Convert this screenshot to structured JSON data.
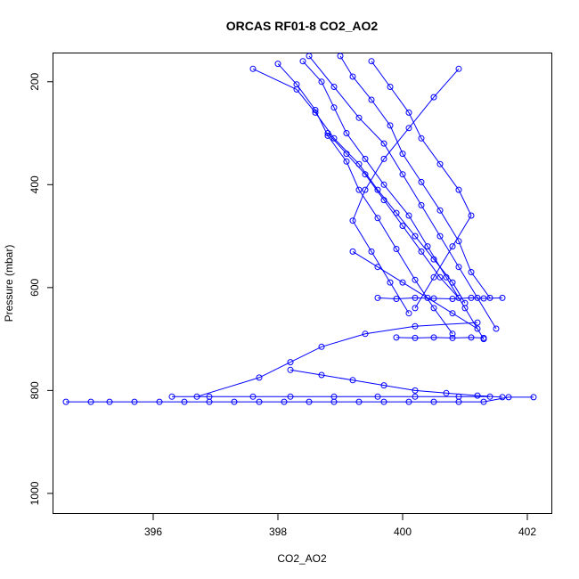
{
  "chart_data": {
    "type": "scatter",
    "title": "ORCAS RF01-8 CO2_AO2",
    "xlabel": "CO2_AO2",
    "ylabel": "Pressure (mbar)",
    "xlim": [
      394.4,
      402.4
    ],
    "ylim": [
      1040,
      145
    ],
    "y_axis_inverted": true,
    "x_ticks": [
      396,
      398,
      400,
      402
    ],
    "y_ticks": [
      200,
      400,
      600,
      800,
      1000
    ],
    "grid": false,
    "legend": "none",
    "marker": "open-circle",
    "connect_points": true,
    "color": "#0000ff",
    "series": [
      {
        "x": [
          394.6,
          395.0,
          395.3,
          395.7,
          396.1,
          396.5,
          396.9,
          397.3,
          397.7,
          398.1,
          398.5,
          398.9,
          399.3,
          399.7,
          400.1,
          400.5,
          400.9,
          401.3,
          401.7,
          402.1
        ],
        "y": [
          822,
          822,
          822,
          822,
          822,
          822,
          822,
          822,
          822,
          822,
          822,
          822,
          822,
          822,
          822,
          822,
          822,
          822,
          813,
          813
        ]
      },
      {
        "x": [
          396.3,
          396.9,
          397.6,
          398.2,
          398.9,
          399.6,
          400.2,
          400.9,
          401.4
        ],
        "y": [
          812,
          812,
          812,
          812,
          812,
          812,
          812,
          812,
          812
        ]
      },
      {
        "x": [
          401.2,
          400.2,
          399.4,
          398.7,
          398.2,
          397.7,
          396.7
        ],
        "y": [
          668,
          675,
          690,
          715,
          745,
          775,
          812
        ]
      },
      {
        "x": [
          397.6,
          398.3,
          398.6,
          398.9,
          399.3,
          399.6,
          399.9,
          400.2,
          400.5,
          400.8,
          401.0
        ],
        "y": [
          175,
          215,
          260,
          310,
          360,
          410,
          455,
          500,
          545,
          590,
          630
        ]
      },
      {
        "x": [
          398.4,
          398.7,
          398.9,
          399.1,
          399.4,
          399.7,
          400.1,
          400.4,
          400.7,
          401.0,
          401.3
        ],
        "y": [
          160,
          200,
          250,
          300,
          350,
          400,
          460,
          520,
          580,
          640,
          700
        ]
      },
      {
        "x": [
          399.0,
          399.2,
          399.5,
          399.8,
          400.0,
          400.3,
          400.6,
          400.9,
          401.1,
          401.4
        ],
        "y": [
          150,
          190,
          235,
          285,
          340,
          395,
          450,
          510,
          570,
          620
        ]
      },
      {
        "x": [
          398.0,
          398.3,
          398.6,
          398.8,
          399.1,
          399.3,
          399.6,
          399.9,
          400.2,
          400.5,
          400.8
        ],
        "y": [
          165,
          205,
          255,
          305,
          355,
          410,
          465,
          525,
          585,
          640,
          690
        ]
      },
      {
        "x": [
          400.9,
          400.5,
          400.1,
          399.7,
          399.4,
          399.2,
          399.5,
          399.8,
          400.1
        ],
        "y": [
          175,
          230,
          290,
          350,
          410,
          470,
          530,
          590,
          650
        ]
      },
      {
        "x": [
          398.5,
          398.9,
          399.3,
          399.7,
          400.0,
          400.3,
          400.6,
          400.9,
          401.2,
          401.5
        ],
        "y": [
          150,
          210,
          270,
          320,
          380,
          440,
          500,
          560,
          620,
          680
        ]
      },
      {
        "x": [
          399.5,
          399.8,
          400.1,
          400.3,
          400.6,
          400.9,
          401.1,
          400.8,
          400.5,
          400.2
        ],
        "y": [
          160,
          210,
          260,
          310,
          360,
          410,
          460,
          520,
          580,
          640
        ]
      },
      {
        "x": [
          399.6,
          399.9,
          400.2,
          400.5,
          400.8,
          401.1,
          401.3,
          401.6
        ],
        "y": [
          620,
          622,
          620,
          621,
          622,
          620,
          621,
          620
        ]
      },
      {
        "x": [
          399.9,
          400.2,
          400.5,
          400.8,
          401.1,
          401.3
        ],
        "y": [
          697,
          698,
          697,
          698,
          697,
          698
        ]
      },
      {
        "x": [
          398.2,
          398.7,
          399.2,
          399.7,
          400.2,
          400.7,
          401.2,
          401.6
        ],
        "y": [
          760,
          770,
          780,
          790,
          800,
          805,
          810,
          813
        ]
      },
      {
        "x": [
          399.2,
          399.6,
          400.0,
          400.4,
          400.8,
          401.2
        ],
        "y": [
          530,
          560,
          590,
          620,
          650,
          680
        ]
      },
      {
        "x": [
          398.8,
          399.1,
          399.4,
          399.7,
          400.0,
          400.3,
          400.6,
          400.9
        ],
        "y": [
          300,
          340,
          380,
          430,
          480,
          530,
          580,
          620
        ]
      }
    ]
  }
}
